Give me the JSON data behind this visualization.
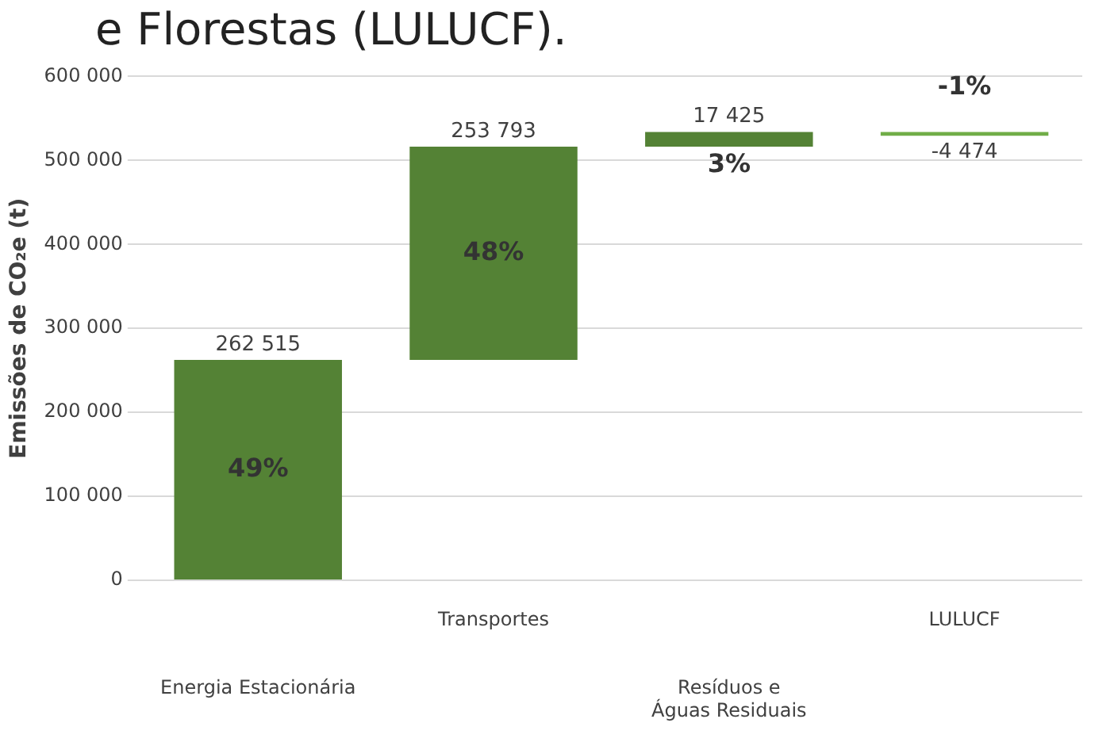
{
  "chart_data": {
    "type": "bar",
    "title": "e Florestas (LULUCF).",
    "ylabel": "Emissões de CO₂e (t)",
    "categories": [
      "Energia Estacionária",
      "Transportes",
      "Resíduos e\nÁguas Residuais",
      "LULUCF"
    ],
    "values": [
      262515,
      253793,
      17425,
      -4474
    ],
    "base": [
      0,
      262515,
      516308,
      533733
    ],
    "colors": [
      "#548235",
      "#548235",
      "#548235",
      "#70ad47"
    ],
    "value_labels": [
      "262 515",
      "253 793",
      "17 425",
      "-4 474"
    ],
    "annotations": [
      "49%",
      "48%",
      "3%",
      "-1%"
    ],
    "ylim": [
      0,
      600000
    ],
    "yticks": [
      {
        "value": 0,
        "label": "0"
      },
      {
        "value": 100000,
        "label": "100 000"
      },
      {
        "value": 200000,
        "label": "200 000"
      },
      {
        "value": 300000,
        "label": "300 000"
      },
      {
        "value": 400000,
        "label": "400 000"
      },
      {
        "value": 500000,
        "label": "500 000"
      },
      {
        "value": 600000,
        "label": "600 000"
      }
    ],
    "grid": "y",
    "legend": false
  }
}
